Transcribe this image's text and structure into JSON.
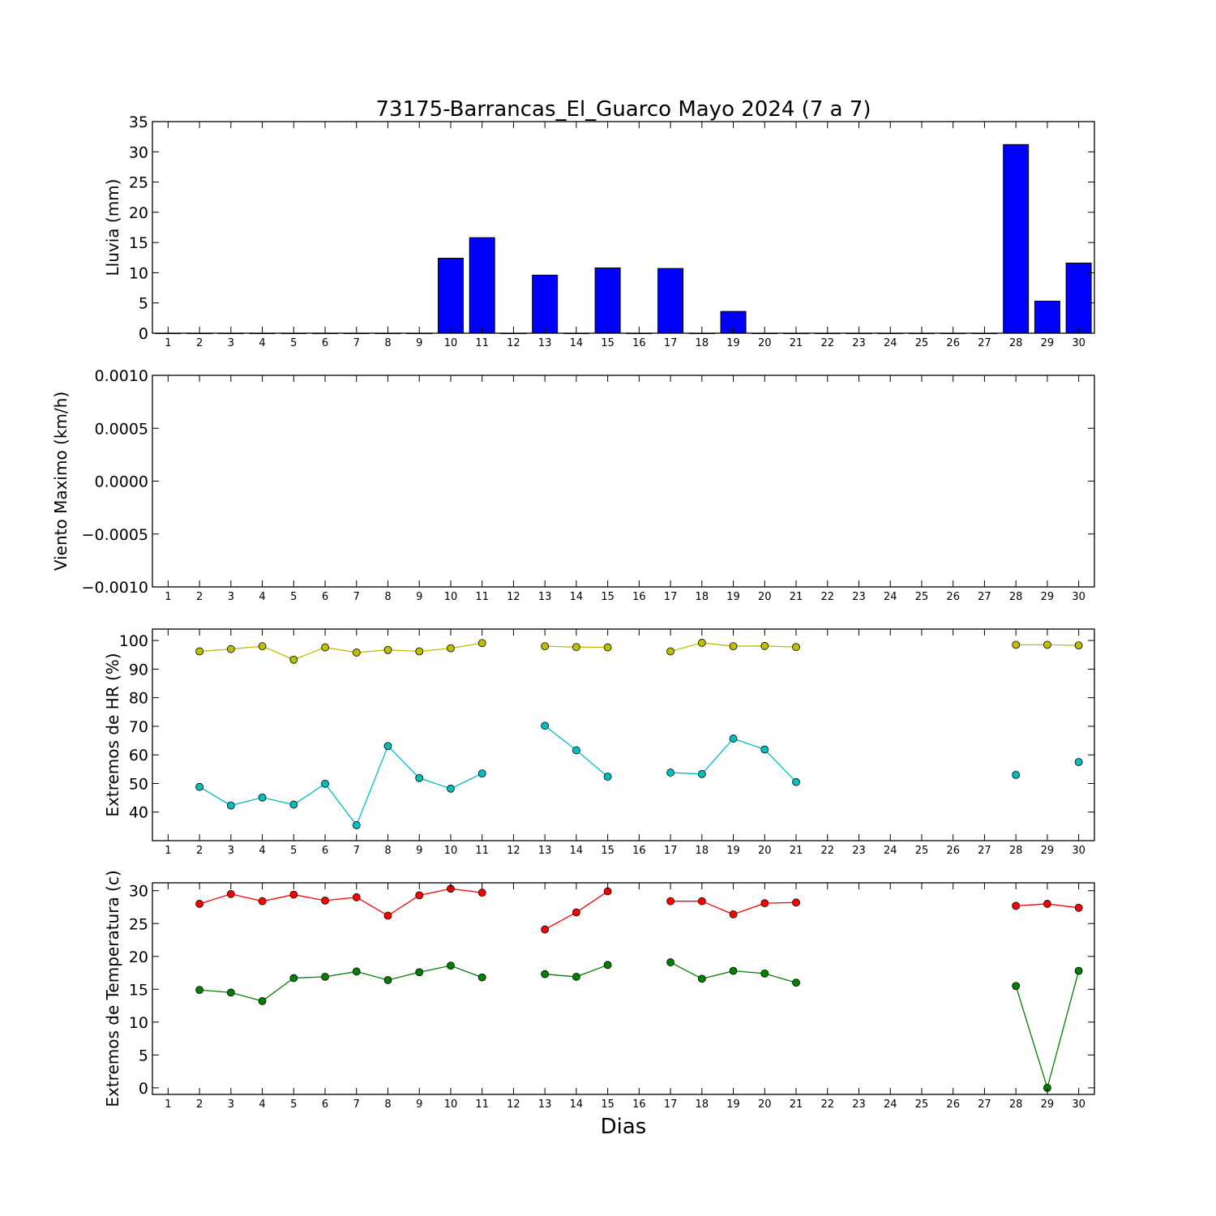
{
  "chart_data": {
    "title": "73175-Barrancas_El_Guarco Mayo 2024  (7 a 7)",
    "xlabel": "Dias",
    "days": [
      1,
      2,
      3,
      4,
      5,
      6,
      7,
      8,
      9,
      10,
      11,
      12,
      13,
      14,
      15,
      16,
      17,
      18,
      19,
      20,
      21,
      22,
      23,
      24,
      25,
      26,
      27,
      28,
      29,
      30
    ],
    "xlim": [
      0.5,
      30.5
    ],
    "panels": [
      {
        "type": "bar",
        "ylabel": "Lluvia (mm)",
        "ylim": [
          0,
          35
        ],
        "yticks": [
          0,
          5,
          10,
          15,
          20,
          25,
          30,
          35
        ],
        "ytick_labels": [
          "0",
          "5",
          "10",
          "15",
          "20",
          "25",
          "30",
          "35"
        ],
        "series": [
          {
            "color": "#0000ff",
            "x": [
              1,
              2,
              3,
              4,
              5,
              6,
              7,
              8,
              9,
              10,
              11,
              12,
              13,
              14,
              15,
              16,
              17,
              18,
              19,
              20,
              21,
              22,
              23,
              24,
              25,
              26,
              27,
              28,
              29,
              30
            ],
            "values": [
              0,
              0,
              0,
              0,
              0,
              0,
              0,
              0,
              0,
              12.4,
              15.8,
              0,
              9.6,
              0,
              10.8,
              0,
              10.7,
              0,
              3.6,
              0,
              0,
              0,
              0,
              0,
              0,
              0,
              0,
              31.2,
              5.3,
              11.6
            ]
          }
        ]
      },
      {
        "type": "line",
        "ylabel": "Viento Maximo (km/h)",
        "ylim": [
          -0.001,
          0.001
        ],
        "yticks": [
          -0.001,
          -0.0005,
          0,
          0.0005,
          0.001
        ],
        "ytick_labels": [
          "−0.0010",
          "−0.0005",
          "0.0000",
          "0.0005",
          "0.0010"
        ],
        "series": []
      },
      {
        "type": "line",
        "ylabel": "Extremos de HR (%)",
        "ylim": [
          30,
          104
        ],
        "yticks": [
          40,
          50,
          60,
          70,
          80,
          90,
          100
        ],
        "ytick_labels": [
          "40",
          "50",
          "60",
          "70",
          "80",
          "90",
          "100"
        ],
        "series": [
          {
            "color": "#bfbf00",
            "x": [
              2,
              3,
              4,
              5,
              6,
              7,
              8,
              9,
              10,
              11,
              12,
              13,
              14,
              15,
              16,
              17,
              18,
              19,
              20,
              21,
              22,
              23,
              24,
              25,
              26,
              27,
              28,
              29,
              30
            ],
            "values": [
              96.2,
              97.0,
              98.0,
              93.3,
              97.6,
              95.8,
              96.7,
              96.2,
              97.3,
              99.1,
              null,
              98.0,
              97.7,
              97.6,
              null,
              96.2,
              99.2,
              98.0,
              98.1,
              97.7,
              null,
              null,
              null,
              null,
              null,
              null,
              98.5,
              98.5,
              98.3
            ]
          },
          {
            "color": "#00bfbf",
            "x": [
              2,
              3,
              4,
              5,
              6,
              7,
              8,
              9,
              10,
              11,
              12,
              13,
              14,
              15,
              16,
              17,
              18,
              19,
              20,
              21,
              22,
              23,
              24,
              25,
              26,
              27,
              28,
              29,
              30
            ],
            "values": [
              48.8,
              42.3,
              45.1,
              42.6,
              49.9,
              35.4,
              63.1,
              51.9,
              48.2,
              53.5,
              null,
              70.2,
              61.6,
              52.4,
              null,
              53.8,
              53.3,
              65.7,
              61.9,
              50.5,
              null,
              null,
              null,
              null,
              null,
              null,
              53.0,
              null,
              57.5
            ]
          }
        ]
      },
      {
        "type": "line",
        "ylabel": "Extremos de Temperatura (c)",
        "ylim": [
          -1,
          31.2
        ],
        "yticks": [
          0,
          5,
          10,
          15,
          20,
          25,
          30
        ],
        "ytick_labels": [
          "0",
          "5",
          "10",
          "15",
          "20",
          "25",
          "30"
        ],
        "series": [
          {
            "color": "#ff0000",
            "x": [
              2,
              3,
              4,
              5,
              6,
              7,
              8,
              9,
              10,
              11,
              12,
              13,
              14,
              15,
              16,
              17,
              18,
              19,
              20,
              21,
              22,
              23,
              24,
              25,
              26,
              27,
              28,
              29,
              30
            ],
            "values": [
              28.0,
              29.5,
              28.4,
              29.4,
              28.5,
              29.0,
              26.2,
              29.3,
              30.3,
              29.7,
              null,
              24.1,
              26.7,
              29.9,
              null,
              28.4,
              28.4,
              26.4,
              28.1,
              28.2,
              null,
              null,
              null,
              null,
              null,
              null,
              27.7,
              28.0,
              27.4
            ]
          },
          {
            "color": "#008000",
            "x": [
              2,
              3,
              4,
              5,
              6,
              7,
              8,
              9,
              10,
              11,
              12,
              13,
              14,
              15,
              16,
              17,
              18,
              19,
              20,
              21,
              22,
              23,
              24,
              25,
              26,
              27,
              28,
              29,
              30
            ],
            "values": [
              14.9,
              14.5,
              13.2,
              16.7,
              16.9,
              17.7,
              16.4,
              17.6,
              18.6,
              16.8,
              null,
              17.3,
              16.9,
              18.7,
              null,
              19.1,
              16.6,
              17.8,
              17.4,
              16.0,
              null,
              null,
              null,
              null,
              null,
              null,
              15.5,
              0.0,
              17.8
            ]
          }
        ]
      }
    ]
  }
}
